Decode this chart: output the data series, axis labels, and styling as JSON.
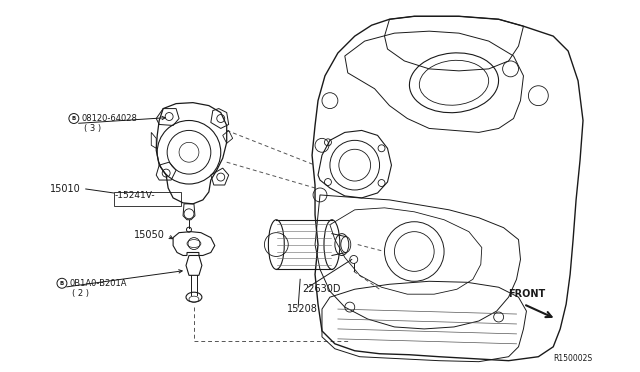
{
  "bg_color": "#ffffff",
  "line_color": "#1a1a1a",
  "figsize": [
    6.4,
    3.72
  ],
  "dpi": 100,
  "labels": {
    "part_B1": "08120-64028",
    "part_B1_sub": "( 3 )",
    "part_15010": "15010",
    "part_15241V": "15241V",
    "part_15050": "15050",
    "part_B2": "0B1A0-B201A",
    "part_B2_sub": "( 2 )",
    "part_22630D": "22630D",
    "part_15208": "15208",
    "front_label": "FRONT",
    "diagram_id": "R150002S"
  },
  "font_size_tiny": 5.5,
  "font_size_small": 6.5,
  "font_size_label": 7.0
}
